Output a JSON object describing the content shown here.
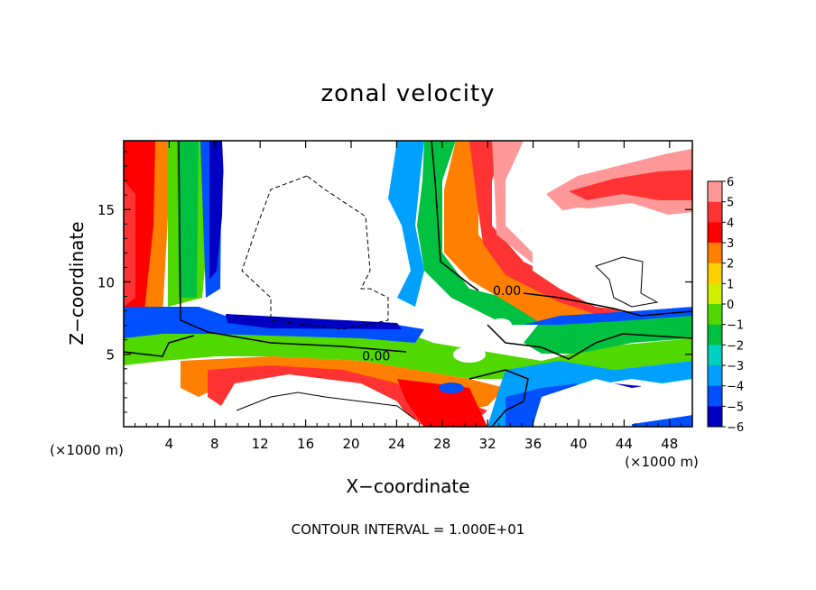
{
  "chart_data": {
    "type": "heatmap",
    "title": "zonal velocity",
    "xlabel": "X−coordinate",
    "ylabel": "Z−coordinate",
    "x_units": "(×1000 m)",
    "z_units": "(×1000 m)",
    "xlim": [
      0,
      50
    ],
    "ylim": [
      0,
      19.75
    ],
    "x_ticks": [
      "4",
      "8",
      "12",
      "16",
      "20",
      "24",
      "28",
      "32",
      "36",
      "40",
      "44",
      "48"
    ],
    "x_tick_values": [
      4,
      8,
      12,
      16,
      20,
      24,
      28,
      32,
      36,
      40,
      44,
      48
    ],
    "y_ticks": [
      "5",
      "10",
      "15"
    ],
    "y_tick_values": [
      5,
      10,
      15
    ],
    "colorbar": {
      "levels": [
        6,
        5,
        4,
        3,
        2,
        1,
        0,
        -1,
        -2,
        -3,
        -4,
        -5,
        -6
      ],
      "labels": [
        "6",
        "5",
        "4",
        "3",
        "2",
        "1",
        "0",
        "−1",
        "−2",
        "−3",
        "−4",
        "−5",
        "−6"
      ],
      "colors": [
        "#ff9999",
        "#ff3333",
        "#ff0000",
        "#ff8000",
        "#ffd000",
        "#d0f000",
        "#50d800",
        "#00c040",
        "#00d0c0",
        "#00a0ff",
        "#0050ff",
        "#0000c0",
        "#7000a0"
      ]
    },
    "contour_labels": [
      {
        "text": "0.00",
        "x": 33.7,
        "z": 9.4
      },
      {
        "text": "0.00",
        "x": 22.2,
        "z": 4.9
      }
    ],
    "footnote": "CONTOUR INTERVAL = 1.000E+01"
  }
}
